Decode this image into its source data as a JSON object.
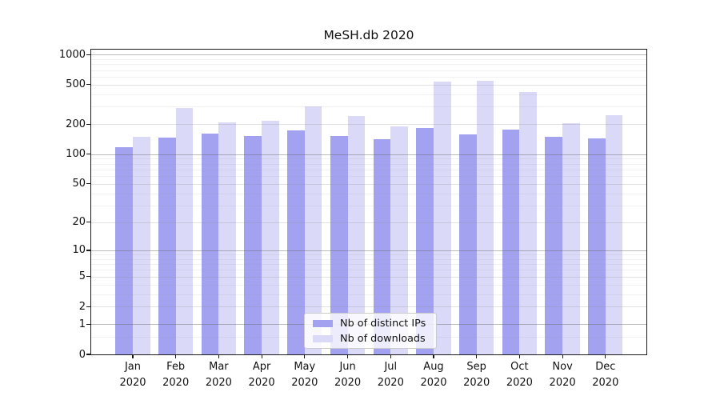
{
  "chart_data": {
    "type": "bar",
    "title": "MeSH.db 2020",
    "categories": [
      "Jan 2020",
      "Feb 2020",
      "Mar 2020",
      "Apr 2020",
      "May 2020",
      "Jun 2020",
      "Jul 2020",
      "Aug 2020",
      "Sep 2020",
      "Oct 2020",
      "Nov 2020",
      "Dec 2020"
    ],
    "series": [
      {
        "name": "Nb of distinct IPs",
        "color": "#a2a2f0",
        "values": [
          117,
          146,
          160,
          151,
          174,
          151,
          142,
          184,
          159,
          178,
          149,
          145
        ]
      },
      {
        "name": "Nb of downloads",
        "color": "#dadaf8",
        "values": [
          150,
          289,
          209,
          215,
          300,
          242,
          192,
          537,
          548,
          420,
          205,
          248
        ]
      }
    ],
    "xlabel": "",
    "ylabel": "",
    "yscale": "log1p",
    "y_tick_values": [
      0,
      1,
      2,
      5,
      10,
      20,
      50,
      100,
      200,
      500,
      1000
    ],
    "ylim": [
      0,
      1120
    ],
    "grid": true,
    "legend_position": "lower-center"
  }
}
